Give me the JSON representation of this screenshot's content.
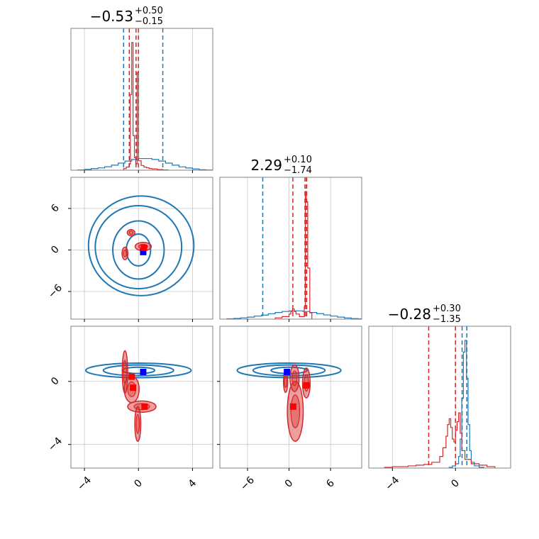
{
  "colors": {
    "blue": "#1f77b4",
    "red": "#d62728",
    "marker_blue": "#0000ff",
    "marker_red": "#ff0000",
    "grid": "#c8c8c8",
    "frame": "#808080"
  },
  "chart_data": {
    "type": "corner",
    "grid": true,
    "params": [
      {
        "index": 0,
        "range": [
          -5,
          5.5
        ],
        "ticks": [
          -4,
          0,
          4
        ],
        "tick_labels": [
          "−4",
          "0",
          "4"
        ]
      },
      {
        "index": 1,
        "range": [
          -10,
          10.5
        ],
        "ticks": [
          -6,
          0,
          6
        ],
        "tick_labels": [
          "−6",
          "0",
          "6"
        ]
      },
      {
        "index": 2,
        "range": [
          -5.5,
          3.5
        ],
        "ticks": [
          -4,
          0
        ],
        "tick_labels": [
          "−4",
          "0"
        ]
      }
    ],
    "titles": [
      {
        "value": "−0.53",
        "plus": "+0.50",
        "minus": "−0.15"
      },
      {
        "value": "2.29",
        "plus": "+0.10",
        "minus": "−1.74"
      },
      {
        "value": "−0.28",
        "plus": "+0.30",
        "minus": "−1.35"
      }
    ],
    "quantile_lines": [
      {
        "param": 0,
        "series": "blue",
        "x": [
          -1.1,
          1.8
        ]
      },
      {
        "param": 0,
        "series": "red",
        "x": [
          -0.68,
          -0.18,
          0.0
        ]
      },
      {
        "param": 1,
        "series": "blue",
        "x": [
          -3.8,
          2.5
        ]
      },
      {
        "param": 1,
        "series": "red",
        "x": [
          0.55,
          2.3,
          2.55
        ]
      },
      {
        "param": 2,
        "series": "blue",
        "x": [
          0.42,
          0.72
        ]
      },
      {
        "param": 2,
        "series": "red",
        "x": [
          -1.7,
          0.0
        ]
      }
    ],
    "diag_histograms": [
      {
        "param": 0,
        "series": "blue",
        "x": [
          -4.5,
          -4,
          -3.5,
          -3,
          -2.5,
          -2,
          -1.5,
          -1,
          -0.5,
          0,
          0.5,
          1,
          1.5,
          2,
          2.5,
          3,
          3.5,
          4,
          4.5,
          5
        ],
        "values": [
          0.2,
          0.5,
          1,
          1.5,
          2.2,
          3.2,
          4.5,
          5.8,
          6.8,
          7.4,
          7.4,
          6.8,
          5.8,
          4.5,
          3.2,
          2.1,
          1.4,
          0.8,
          0.3,
          0.1
        ]
      },
      {
        "param": 0,
        "series": "red",
        "x": [
          -1.1,
          -0.9,
          -0.7,
          -0.6,
          -0.5,
          -0.4,
          -0.3,
          -0.2,
          -0.1,
          0,
          0.2,
          0.4,
          0.6,
          0.8,
          1.0,
          1.4,
          1.8
        ],
        "values": [
          1,
          2,
          4,
          48,
          81,
          22,
          8,
          4,
          62,
          6,
          3,
          2,
          1.5,
          1,
          0.8,
          0.4,
          0.2
        ]
      },
      {
        "param": 1,
        "series": "blue",
        "x": [
          -9,
          -8,
          -7,
          -6,
          -5,
          -4,
          -3,
          -2,
          -1,
          0,
          1,
          2,
          3,
          4,
          5,
          6,
          7,
          8,
          9,
          10
        ],
        "values": [
          0.3,
          0.6,
          1,
          1.6,
          2.4,
          3.2,
          4.2,
          5.2,
          6,
          6.5,
          6.5,
          6,
          5.2,
          4.3,
          3.3,
          2.4,
          1.6,
          0.9,
          0.4,
          0.2
        ]
      },
      {
        "param": 1,
        "series": "red",
        "x": [
          -2,
          -1,
          0,
          0.25,
          0.5,
          0.75,
          1,
          1.5,
          2,
          2.2,
          2.35,
          2.5,
          2.7,
          3
        ],
        "values": [
          1,
          2,
          4,
          6,
          8,
          6,
          4,
          2,
          2,
          10,
          100,
          92,
          40,
          5
        ]
      },
      {
        "param": 2,
        "series": "blue",
        "x": [
          -0.4,
          -0.2,
          0,
          0.2,
          0.3,
          0.4,
          0.5,
          0.6,
          0.7,
          0.8,
          0.9,
          1.0,
          1.2,
          1.5
        ],
        "values": [
          0.5,
          1.5,
          3,
          8,
          20,
          48,
          80,
          88,
          62,
          30,
          12,
          4,
          1.5,
          0.5
        ]
      },
      {
        "param": 2,
        "series": "red",
        "x": [
          -4.5,
          -4,
          -3,
          -2.5,
          -2,
          -1.5,
          -1,
          -0.8,
          -0.6,
          -0.5,
          -0.4,
          -0.3,
          -0.2,
          -0.1,
          0,
          0.1,
          0.2,
          0.3,
          0.4,
          0.6,
          1,
          1.5,
          2
        ],
        "values": [
          0.5,
          1,
          1.5,
          2,
          2.5,
          4,
          8,
          14,
          22,
          30,
          34,
          28,
          20,
          18,
          26,
          32,
          38,
          24,
          12,
          6,
          3,
          2,
          1
        ]
      }
    ],
    "panels_2d": [
      {
        "row": 1,
        "col": 0,
        "blue_contours": [
          {
            "cx": 0,
            "cy": 0,
            "rx": 0.9,
            "ry": 2.3
          },
          {
            "cx": 0,
            "cy": 0,
            "rx": 1.9,
            "ry": 4.2
          },
          {
            "cx": 0,
            "cy": 0.4,
            "rx": 3.2,
            "ry": 6.0
          },
          {
            "cx": 0.2,
            "cy": 0.6,
            "rx": 3.9,
            "ry": 7.2
          }
        ],
        "red_blobs": [
          {
            "cx": -0.55,
            "cy": 2.5,
            "rx": 0.28,
            "ry": 0.45
          },
          {
            "cx": 0.35,
            "cy": 0.5,
            "rx": 0.6,
            "ry": 0.6
          },
          {
            "cx": -1.0,
            "cy": -0.5,
            "rx": 0.22,
            "ry": 0.9
          }
        ],
        "markers": [
          {
            "series": "blue",
            "x": 0.35,
            "y": -0.3
          },
          {
            "series": "red",
            "x": 0.4,
            "y": 0.3
          }
        ]
      },
      {
        "row": 2,
        "col": 0,
        "blue_contours": [
          {
            "cx": 0,
            "cy": 0.7,
            "rx": 1.2,
            "ry": 0.2
          },
          {
            "cx": 0,
            "cy": 0.7,
            "rx": 2.6,
            "ry": 0.34
          },
          {
            "cx": 0,
            "cy": 0.7,
            "rx": 3.9,
            "ry": 0.46
          }
        ],
        "red_blobs": [
          {
            "cx": -1.0,
            "cy": 0.6,
            "rx": 0.2,
            "ry": 1.35
          },
          {
            "cx": -0.5,
            "cy": -0.5,
            "rx": 0.55,
            "ry": 0.85
          },
          {
            "cx": 0.25,
            "cy": -1.6,
            "rx": 1.05,
            "ry": 0.36
          },
          {
            "cx": -0.05,
            "cy": -2.7,
            "rx": 0.22,
            "ry": 1.1
          }
        ],
        "markers": [
          {
            "series": "blue",
            "x": 0.35,
            "y": 0.6
          },
          {
            "series": "red",
            "x": -0.5,
            "y": 0.3
          },
          {
            "series": "red",
            "x": -0.4,
            "y": -0.4
          },
          {
            "series": "red",
            "x": 0.45,
            "y": -1.6
          }
        ]
      },
      {
        "row": 2,
        "col": 1,
        "blue_contours": [
          {
            "cx": 0,
            "cy": 0.7,
            "rx": 2.6,
            "ry": 0.2
          },
          {
            "cx": 0,
            "cy": 0.7,
            "rx": 5.2,
            "ry": 0.34
          },
          {
            "cx": 0,
            "cy": 0.7,
            "rx": 7.5,
            "ry": 0.46
          }
        ],
        "red_blobs": [
          {
            "cx": 2.5,
            "cy": -0.1,
            "rx": 0.55,
            "ry": 0.95
          },
          {
            "cx": 0.8,
            "cy": 0.2,
            "rx": 0.65,
            "ry": 0.85
          },
          {
            "cx": 0.9,
            "cy": -1.9,
            "rx": 1.15,
            "ry": 1.9
          },
          {
            "cx": -0.5,
            "cy": 0.0,
            "rx": 0.3,
            "ry": 0.7
          }
        ],
        "markers": [
          {
            "series": "blue",
            "x": -0.3,
            "y": 0.6
          },
          {
            "series": "red",
            "x": 2.5,
            "y": -0.25
          },
          {
            "series": "red",
            "x": 0.6,
            "y": -1.6
          }
        ]
      }
    ]
  }
}
